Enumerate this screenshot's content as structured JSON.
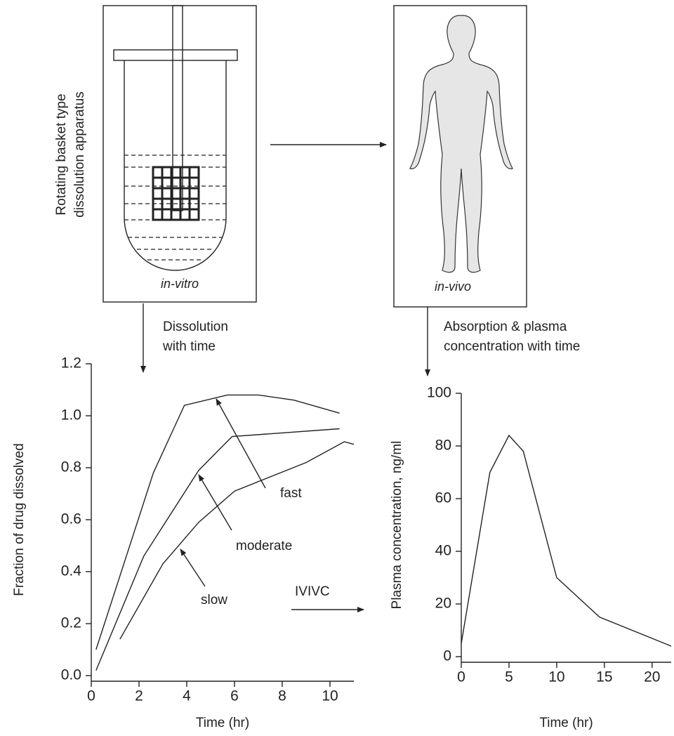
{
  "diagram": {
    "apparatus_label": [
      "Rotating basket type",
      "dissolution apparatus"
    ],
    "in_vitro": "in-vitro",
    "in_vivo": "in-vivo",
    "dissolution_label": [
      "Dissolution",
      "with time"
    ],
    "absorption_label": [
      "Absorption & plasma",
      "concentration with time"
    ],
    "ivivc": "IVIVC"
  },
  "chart_data": [
    {
      "type": "line",
      "x_label": "Time (hr)",
      "y_label": "Fraction of drug dissolved",
      "xlim": [
        0,
        11
      ],
      "ylim": [
        0,
        1.2
      ],
      "xticks": [
        0,
        2,
        4,
        6,
        8,
        10
      ],
      "yticks": [
        {
          "value": 0,
          "label": "0.0"
        },
        0.2,
        0.4,
        0.6,
        0.8,
        {
          "value": 1,
          "label": "1.0"
        },
        1.2
      ],
      "series": [
        {
          "name": "fast",
          "color": "#222222",
          "x": [
            0.2,
            2.6,
            3.9,
            5.7,
            7,
            8.5,
            10.4
          ],
          "values": [
            0.1,
            0.78,
            1.04,
            1.08,
            1.08,
            1.06,
            1.01
          ]
        },
        {
          "name": "moderate",
          "color": "#222222",
          "x": [
            0.2,
            2.2,
            4.5,
            5.9,
            10.4
          ],
          "values": [
            0.02,
            0.46,
            0.79,
            0.92,
            0.95
          ]
        },
        {
          "name": "slow",
          "color": "#222222",
          "x": [
            1.2,
            3,
            4.5,
            6,
            9,
            10.6,
            11
          ],
          "values": [
            0.14,
            0.43,
            0.59,
            0.71,
            0.82,
            0.9,
            0.89
          ]
        }
      ]
    },
    {
      "type": "line",
      "x_label": "Time (hr)",
      "y_label": "Plasma concentration, ng/ml",
      "xlim": [
        0,
        22
      ],
      "ylim": [
        0,
        100
      ],
      "xticks": [
        0,
        5,
        10,
        15,
        20
      ],
      "yticks": [
        0,
        20,
        40,
        60,
        80,
        100
      ],
      "series": [
        {
          "color": "#222222",
          "x": [
            0,
            3,
            5,
            6.5,
            10,
            14.5,
            22
          ],
          "values": [
            5,
            70,
            84,
            78,
            30,
            15,
            4
          ]
        }
      ]
    }
  ]
}
